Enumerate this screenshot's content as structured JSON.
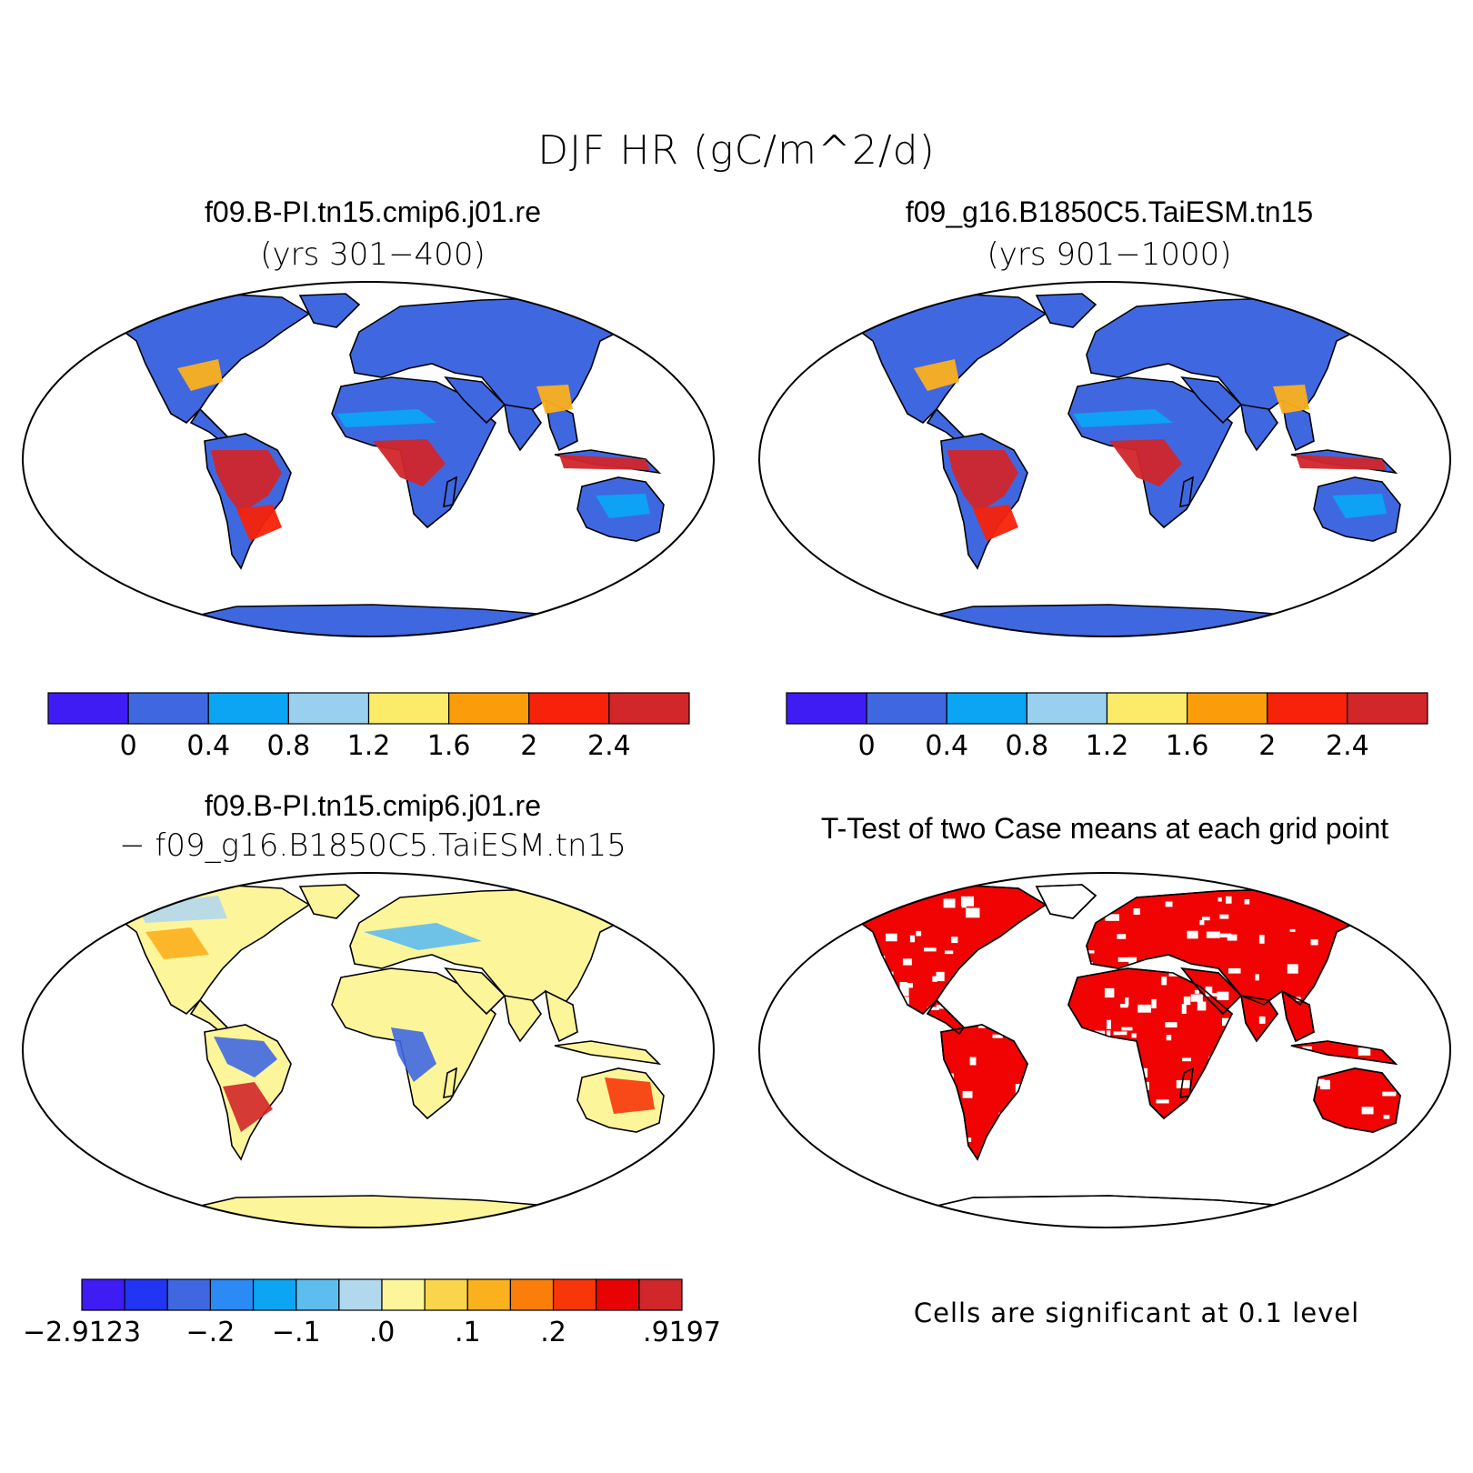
{
  "figure": {
    "title": "DJF HR (gC/m^2/d)"
  },
  "panels": [
    {
      "id": "case1",
      "title": "f09.B-PI.tn15.cmip6.j01.re",
      "subtitle": "(yrs 301−400)"
    },
    {
      "id": "case2",
      "title": "f09_g16.B1850C5.TaiESM.tn15",
      "subtitle": "(yrs 901−1000)"
    },
    {
      "id": "difference",
      "title": "f09.B-PI.tn15.cmip6.j01.re",
      "subtitle": "− f09_g16.B1850C5.TaiESM.tn15"
    },
    {
      "id": "ttest",
      "title": "T-Test of two Case means at each grid point",
      "note": "Cells are significant at 0.1 level"
    }
  ],
  "colorbar_case": {
    "colors": [
      "#3f1cf4",
      "#3f68e0",
      "#0ba5f3",
      "#98d0ee",
      "#fbeb69",
      "#fb9d0a",
      "#f7220a",
      "#d1262a"
    ],
    "labels": [
      "0",
      "0.4",
      "0.8",
      "1.2",
      "1.6",
      "2",
      "2.4"
    ]
  },
  "colorbar_diff": {
    "colors": [
      "#3f1cf4",
      "#2235f2",
      "#3f68e0",
      "#2b8af4",
      "#0ba5f3",
      "#5ebdef",
      "#b2d8ee",
      "#fdf59a",
      "#fad54b",
      "#fbb01d",
      "#fb7d0a",
      "#f7360a",
      "#e70303",
      "#d1262a"
    ],
    "labels": [
      "−2.9123",
      "−.2",
      "−.1",
      ".0",
      ".1",
      ".2",
      ".9197"
    ]
  },
  "map_fill": {
    "case_land": "#3f68e0",
    "case_tropics": "#d1262a",
    "case_mid": "#fbb01d",
    "diff_land": "#fdf59a",
    "ttest_sig": "#f20303",
    "outline": "#000000"
  }
}
